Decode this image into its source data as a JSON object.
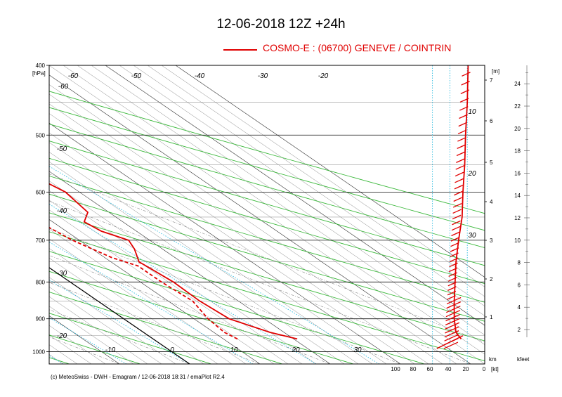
{
  "title": "12-06-2018  12Z +24h",
  "legend": {
    "label": "COSMO-E : (06700)  GENEVE / COINTRIN",
    "color": "#e00000"
  },
  "footer": "(c) MeteoSwiss - DWH - Emagram / 12-06-2018  18:31 / emaPlot R2.4",
  "chart_data": {
    "type": "line",
    "title": "12-06-2018  12Z +24h",
    "xlabel": "",
    "ylabel": "[hPa]",
    "pressure_ticks": [
      "400",
      "500",
      "600",
      "700",
      "800",
      "900",
      "1000"
    ],
    "pressure_values": [
      400,
      500,
      600,
      700,
      800,
      900,
      1000
    ],
    "ylim": [
      1040,
      400
    ],
    "xlim_temp": [
      -20,
      42
    ],
    "temp_isotherm_labels_top": [
      "-60",
      "-50",
      "-40",
      "-30",
      "-20"
    ],
    "temp_isotherm_labels_left": [
      "-60",
      "-50",
      "-40",
      "-30",
      "-20"
    ],
    "temp_labels_bottom": [
      "-10",
      "0",
      "10",
      "20",
      "30"
    ],
    "km_label": "km",
    "km_ticks": [
      "1",
      "2",
      "3",
      "4",
      "5",
      "6",
      "7"
    ],
    "m_label": "[m]",
    "wind_label": "[kt]",
    "wind_ticks": [
      "100",
      "80",
      "60",
      "40",
      "20",
      "0"
    ],
    "wind_inline_labels": [
      "10",
      "20",
      "30"
    ],
    "kfeet_label": "kfeet",
    "kfeet_ticks": [
      "2",
      "4",
      "6",
      "8",
      "10",
      "12",
      "14",
      "16",
      "18",
      "20",
      "22",
      "24"
    ],
    "grid": true,
    "series": [
      {
        "name": "COSMO-E : (06700)  GENEVE / COINTRIN",
        "kind": "temperature",
        "style": "solid",
        "color": "#e00000",
        "points": [
          [
            960,
            20.5
          ],
          [
            940,
            18
          ],
          [
            900,
            15
          ],
          [
            850,
            14.5
          ],
          [
            800,
            14.7
          ],
          [
            750,
            14
          ],
          [
            720,
            16
          ],
          [
            700,
            17
          ],
          [
            680,
            15
          ],
          [
            660,
            14.5
          ],
          [
            640,
            17
          ],
          [
            600,
            18
          ],
          [
            550,
            16
          ],
          [
            500,
            14
          ],
          [
            450,
            11
          ],
          [
            400,
            9
          ]
        ]
      },
      {
        "name": "",
        "kind": "dewpoint",
        "style": "dashed",
        "color": "#e00000",
        "points": [
          [
            960,
            12
          ],
          [
            940,
            11.5
          ],
          [
            900,
            12
          ],
          [
            850,
            13.5
          ],
          [
            800,
            13
          ],
          [
            760,
            13
          ],
          [
            740,
            11
          ],
          [
            700,
            9
          ],
          [
            660,
            8
          ],
          [
            630,
            4
          ],
          [
            600,
            2
          ],
          [
            560,
            -2
          ],
          [
            520,
            -4
          ],
          [
            470,
            -3
          ],
          [
            430,
            -4
          ],
          [
            400,
            -7
          ]
        ]
      },
      {
        "name": "",
        "kind": "wind_profile",
        "style": "solid",
        "color": "#e00000",
        "points": [
          [
            960,
            27
          ],
          [
            940,
            33
          ],
          [
            900,
            35
          ],
          [
            850,
            35
          ],
          [
            800,
            34
          ],
          [
            750,
            33
          ],
          [
            700,
            30
          ],
          [
            650,
            26
          ],
          [
            600,
            25
          ],
          [
            550,
            23
          ],
          [
            500,
            22
          ],
          [
            450,
            20
          ],
          [
            400,
            19
          ]
        ]
      }
    ]
  }
}
